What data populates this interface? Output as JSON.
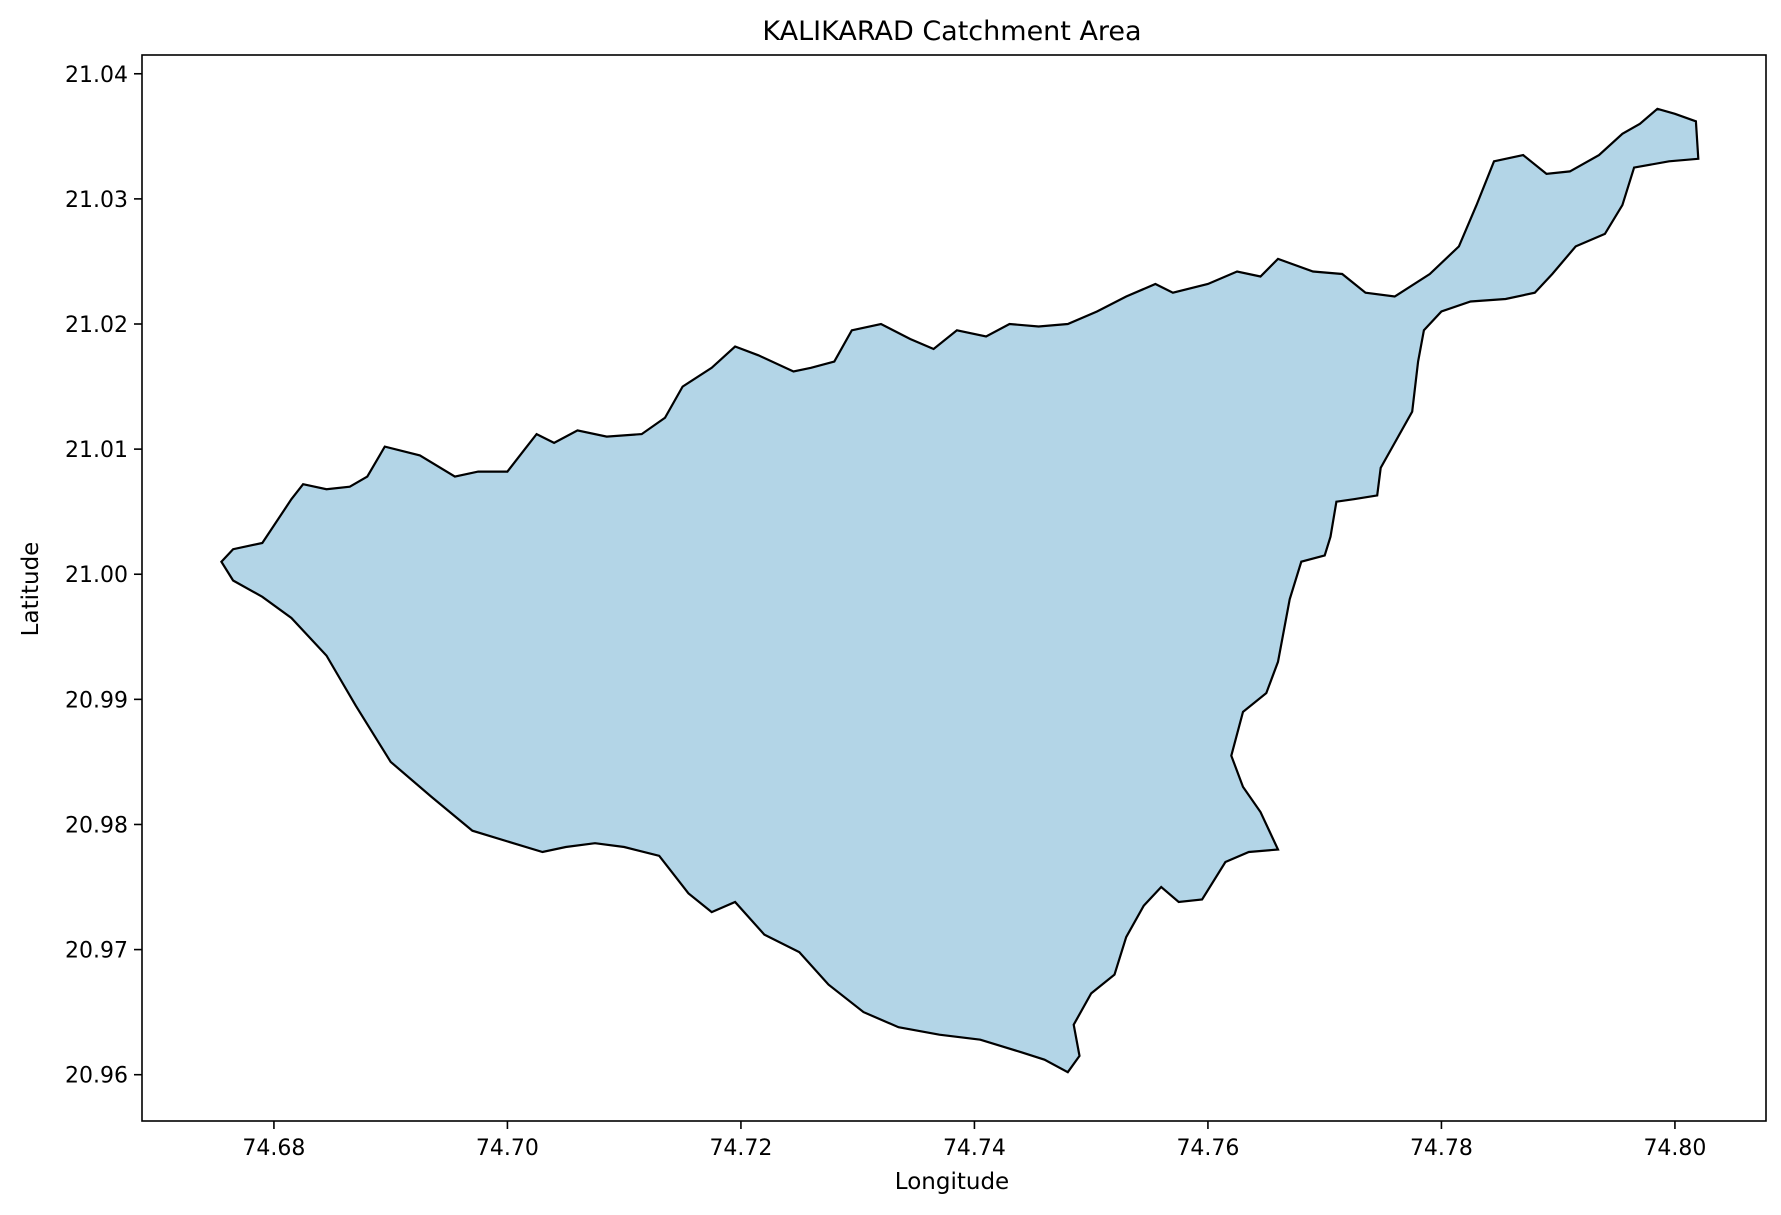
{
  "chart_data": {
    "type": "map",
    "title": "KALIKARAD Catchment Area",
    "xlabel": "Longitude",
    "ylabel": "Latitude",
    "xlim": [
      74.6687,
      74.8078
    ],
    "ylim": [
      20.9563,
      21.0415
    ],
    "x_ticks": [
      "74.68",
      "74.70",
      "74.72",
      "74.74",
      "74.76",
      "74.78",
      "74.80"
    ],
    "x_tick_values": [
      74.68,
      74.7,
      74.72,
      74.74,
      74.76,
      74.78,
      74.8
    ],
    "y_ticks": [
      "20.96",
      "20.97",
      "20.98",
      "20.99",
      "21.00",
      "21.01",
      "21.02",
      "21.03",
      "21.04"
    ],
    "y_tick_values": [
      20.96,
      20.97,
      20.98,
      20.99,
      21.0,
      21.01,
      21.02,
      21.03,
      21.04
    ],
    "grid": false,
    "fill_color": "#b3d5e7",
    "edge_color": "#000000",
    "boundary": [
      [
        74.6755,
        21.001
      ],
      [
        74.6765,
        21.002
      ],
      [
        74.679,
        21.0025
      ],
      [
        74.6815,
        21.006
      ],
      [
        74.6825,
        21.0072
      ],
      [
        74.6845,
        21.0068
      ],
      [
        74.6865,
        21.007
      ],
      [
        74.688,
        21.0078
      ],
      [
        74.6895,
        21.0102
      ],
      [
        74.6925,
        21.0095
      ],
      [
        74.6955,
        21.0078
      ],
      [
        74.6975,
        21.0082
      ],
      [
        74.7,
        21.0082
      ],
      [
        74.7015,
        21.01
      ],
      [
        74.7025,
        21.0112
      ],
      [
        74.704,
        21.0105
      ],
      [
        74.706,
        21.0115
      ],
      [
        74.7085,
        21.011
      ],
      [
        74.7115,
        21.0112
      ],
      [
        74.7135,
        21.0125
      ],
      [
        74.715,
        21.015
      ],
      [
        74.7175,
        21.0165
      ],
      [
        74.7195,
        21.0182
      ],
      [
        74.7215,
        21.0175
      ],
      [
        74.7245,
        21.0162
      ],
      [
        74.726,
        21.0165
      ],
      [
        74.728,
        21.017
      ],
      [
        74.7295,
        21.0195
      ],
      [
        74.732,
        21.02
      ],
      [
        74.7345,
        21.0188
      ],
      [
        74.7365,
        21.018
      ],
      [
        74.7385,
        21.0195
      ],
      [
        74.741,
        21.019
      ],
      [
        74.743,
        21.02
      ],
      [
        74.7455,
        21.0198
      ],
      [
        74.748,
        21.02
      ],
      [
        74.7505,
        21.021
      ],
      [
        74.753,
        21.0222
      ],
      [
        74.7555,
        21.0232
      ],
      [
        74.757,
        21.0225
      ],
      [
        74.76,
        21.0232
      ],
      [
        74.7625,
        21.0242
      ],
      [
        74.7645,
        21.0238
      ],
      [
        74.766,
        21.0252
      ],
      [
        74.769,
        21.0242
      ],
      [
        74.7715,
        21.024
      ],
      [
        74.7735,
        21.0225
      ],
      [
        74.776,
        21.0222
      ],
      [
        74.779,
        21.024
      ],
      [
        74.7815,
        21.0262
      ],
      [
        74.783,
        21.0295
      ],
      [
        74.7845,
        21.033
      ],
      [
        74.787,
        21.0335
      ],
      [
        74.789,
        21.032
      ],
      [
        74.791,
        21.0322
      ],
      [
        74.7935,
        21.0335
      ],
      [
        74.7955,
        21.0352
      ],
      [
        74.797,
        21.036
      ],
      [
        74.7985,
        21.0372
      ],
      [
        74.8,
        21.0368
      ],
      [
        74.8018,
        21.0362
      ],
      [
        74.802,
        21.0332
      ],
      [
        74.7995,
        21.033
      ],
      [
        74.7965,
        21.0325
      ],
      [
        74.7955,
        21.0295
      ],
      [
        74.794,
        21.0272
      ],
      [
        74.7915,
        21.0262
      ],
      [
        74.7895,
        21.024
      ],
      [
        74.788,
        21.0225
      ],
      [
        74.7855,
        21.022
      ],
      [
        74.7825,
        21.0218
      ],
      [
        74.78,
        21.021
      ],
      [
        74.7785,
        21.0195
      ],
      [
        74.778,
        21.017
      ],
      [
        74.7775,
        21.013
      ],
      [
        74.776,
        21.0105
      ],
      [
        74.7748,
        21.0085
      ],
      [
        74.7745,
        21.0063
      ],
      [
        74.7725,
        21.006
      ],
      [
        74.771,
        21.0058
      ],
      [
        74.7705,
        21.003
      ],
      [
        74.77,
        21.0015
      ],
      [
        74.768,
        21.001
      ],
      [
        74.767,
        20.998
      ],
      [
        74.766,
        20.993
      ],
      [
        74.765,
        20.9905
      ],
      [
        74.763,
        20.989
      ],
      [
        74.762,
        20.9855
      ],
      [
        74.763,
        20.983
      ],
      [
        74.7645,
        20.981
      ],
      [
        74.766,
        20.978
      ],
      [
        74.7635,
        20.9778
      ],
      [
        74.7615,
        20.977
      ],
      [
        74.7595,
        20.974
      ],
      [
        74.7575,
        20.9738
      ],
      [
        74.756,
        20.975
      ],
      [
        74.7545,
        20.9735
      ],
      [
        74.753,
        20.971
      ],
      [
        74.752,
        20.968
      ],
      [
        74.75,
        20.9665
      ],
      [
        74.7485,
        20.964
      ],
      [
        74.749,
        20.9615
      ],
      [
        74.748,
        20.9602
      ],
      [
        74.746,
        20.9612
      ],
      [
        74.744,
        20.9618
      ],
      [
        74.7405,
        20.9628
      ],
      [
        74.737,
        20.9632
      ],
      [
        74.7335,
        20.9638
      ],
      [
        74.7305,
        20.965
      ],
      [
        74.7275,
        20.9672
      ],
      [
        74.725,
        20.9698
      ],
      [
        74.722,
        20.9712
      ],
      [
        74.7195,
        20.9738
      ],
      [
        74.7175,
        20.973
      ],
      [
        74.7155,
        20.9745
      ],
      [
        74.713,
        20.9775
      ],
      [
        74.71,
        20.9782
      ],
      [
        74.7075,
        20.9785
      ],
      [
        74.705,
        20.9782
      ],
      [
        74.703,
        20.9778
      ],
      [
        74.7005,
        20.9785
      ],
      [
        74.697,
        20.9795
      ],
      [
        74.6935,
        20.9822
      ],
      [
        74.69,
        20.985
      ],
      [
        74.687,
        20.9895
      ],
      [
        74.6845,
        20.9935
      ],
      [
        74.6815,
        20.9965
      ],
      [
        74.679,
        20.9982
      ],
      [
        74.6765,
        20.9995
      ],
      [
        74.6755,
        21.001
      ]
    ]
  }
}
